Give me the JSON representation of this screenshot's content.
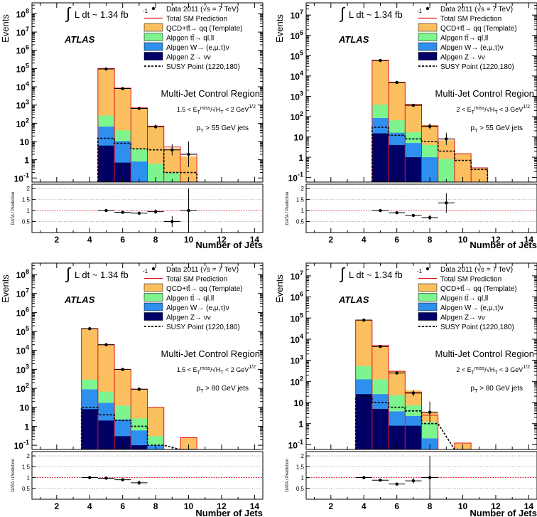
{
  "common": {
    "ylabel_top": "Events",
    "ylabel_ratio": "DATA / Prediction",
    "xlabel": "Number of Jets",
    "lumi_label": "L dt ~ 1.34 fb",
    "lumi_exp": "-1",
    "atlas_label": "ATLAS",
    "region_label": "Multi-Jet Control Region",
    "legend": [
      {
        "key": "data",
        "label": "Data 2011 (√s = 7 TeV)",
        "style": "point",
        "color": "#000000"
      },
      {
        "key": "sm",
        "label": "Total SM Prediction",
        "style": "line",
        "color": "#e0141e"
      },
      {
        "key": "qcd",
        "label": "QCD+tt̄→ qq (Template)",
        "style": "box",
        "color": "#fbbf5f"
      },
      {
        "key": "ttbar",
        "label": "Alpgen tt̄→ ql,ll",
        "style": "box",
        "color": "#7df48d"
      },
      {
        "key": "wjets",
        "label": "Alpgen W→ (e,μ,τ)ν",
        "style": "box",
        "color": "#2e8fef"
      },
      {
        "key": "zjets",
        "label": "Alpgen Z→ νν",
        "style": "box",
        "color": "#000066"
      },
      {
        "key": "susy",
        "label": "SUSY Point (1220,180)",
        "style": "dash",
        "color": "#000000"
      }
    ],
    "x_ticks": [
      "2",
      "4",
      "6",
      "8",
      "10",
      "12",
      "14"
    ],
    "ratio_ticks": [
      "0.5",
      "1",
      "1.5",
      "2"
    ]
  },
  "chart_data": [
    {
      "type": "bar",
      "stacked": true,
      "ylog": true,
      "xlim": [
        0.5,
        14.5
      ],
      "ylim": [
        0.06,
        400000000
      ],
      "ytop_exp": 8,
      "cut_label": "1.5 < E",
      "cut_label_tail": "/√H",
      "cut_label_end": " < 2 GeV",
      "pt_label": "p",
      "pt_label_tail": " > 55 GeV jets",
      "bins": [
        5,
        6,
        7,
        8,
        9,
        10
      ],
      "series": [
        {
          "name": "Alpgen Z→ νν",
          "key": "zjets",
          "values": [
            6,
            0.7,
            0,
            0,
            0,
            0
          ]
        },
        {
          "name": "Alpgen W→ (e,μ,τ)ν",
          "key": "wjets",
          "values": [
            60,
            10,
            0.8,
            0,
            0,
            0
          ]
        },
        {
          "name": "Alpgen tt̄→ ql,ll",
          "key": "ttbar",
          "values": [
            200,
            30,
            3,
            0.6,
            0.2,
            0
          ]
        },
        {
          "name": "QCD+tt̄→ qq (Template)",
          "key": "qcd",
          "values": [
            100000,
            8500,
            700,
            70,
            4,
            1.5
          ]
        }
      ],
      "susy": [
        15,
        8,
        4,
        3.5,
        0.2,
        0.2
      ],
      "total": [
        100000,
        8500,
        700,
        70,
        5,
        2
      ],
      "data": {
        "x": [
          5,
          6,
          7,
          8,
          9,
          10
        ],
        "y": [
          95000,
          8000,
          650,
          65,
          3.5,
          2
        ],
        "err_lo": [
          0.01,
          0.01,
          0.04,
          0.12,
          0.3,
          0.7
        ],
        "err_hi": [
          0.01,
          0.01,
          0.04,
          0.12,
          0.3,
          0.7
        ]
      },
      "ratio": {
        "x": [
          5,
          6,
          7,
          8,
          9,
          10
        ],
        "y": [
          1.0,
          0.92,
          0.88,
          0.95,
          0.5,
          1.0
        ],
        "err": [
          0.02,
          0.03,
          0.05,
          0.1,
          0.25,
          1.0
        ],
        "ylim": [
          0,
          2.2
        ]
      }
    },
    {
      "type": "bar",
      "stacked": true,
      "ylog": true,
      "xlim": [
        0.5,
        14.5
      ],
      "ylim": [
        0.06,
        40000000
      ],
      "ytop_exp": 7,
      "cut_label": "2 < E",
      "cut_label_tail": "/√H",
      "cut_label_end": " < 3 GeV",
      "pt_label": "p",
      "pt_label_tail": " > 55 GeV jets",
      "bins": [
        5,
        6,
        7,
        8,
        9,
        10,
        11
      ],
      "series": [
        {
          "name": "Alpgen Z→ νν",
          "key": "zjets",
          "values": [
            15,
            4,
            1,
            0,
            0,
            0,
            0
          ]
        },
        {
          "name": "Alpgen W→ (e,μ,τ)ν",
          "key": "wjets",
          "values": [
            70,
            12,
            4,
            1,
            0,
            0,
            0
          ]
        },
        {
          "name": "Alpgen tt̄→ ql,ll",
          "key": "ttbar",
          "values": [
            300,
            50,
            12,
            3,
            0.8,
            0,
            0
          ]
        },
        {
          "name": "QCD+tt̄→ qq (Template)",
          "key": "qcd",
          "values": [
            60000,
            5000,
            400,
            35,
            6,
            1.5,
            0.3
          ]
        }
      ],
      "susy": [
        30,
        12,
        8,
        6,
        2,
        0.7,
        0.25
      ],
      "total": [
        60000,
        5000,
        400,
        35,
        8,
        1.5,
        0.3
      ],
      "data": {
        "x": [
          5,
          6,
          7,
          8,
          9
        ],
        "y": [
          58000,
          4800,
          360,
          33,
          8
        ],
        "err_lo": [
          0.01,
          0.01,
          0.05,
          0.15,
          0.3
        ],
        "err_hi": [
          0.01,
          0.01,
          0.05,
          0.15,
          0.3
        ]
      },
      "ratio": {
        "x": [
          5,
          6,
          7,
          8,
          9
        ],
        "y": [
          1.0,
          0.9,
          0.78,
          0.68,
          1.35
        ],
        "err": [
          0.02,
          0.03,
          0.06,
          0.12,
          0.45
        ],
        "ylim": [
          0,
          2.2
        ]
      }
    },
    {
      "type": "bar",
      "stacked": true,
      "ylog": true,
      "xlim": [
        0.5,
        14.5
      ],
      "ylim": [
        0.06,
        400000000
      ],
      "ytop_exp": 8,
      "cut_label": "1.5 < E",
      "cut_label_tail": "/√H",
      "cut_label_end": " < 2 GeV",
      "pt_label": "p",
      "pt_label_tail": " > 80 GeV jets",
      "bins": [
        4,
        5,
        6,
        7,
        8,
        10
      ],
      "series": [
        {
          "name": "Alpgen Z→ νν",
          "key": "zjets",
          "values": [
            8,
            2,
            0.3,
            0.1,
            0,
            0
          ]
        },
        {
          "name": "Alpgen W→ (e,μ,τ)ν",
          "key": "wjets",
          "values": [
            80,
            15,
            2,
            0.5,
            0.1,
            0
          ]
        },
        {
          "name": "Alpgen tt̄→ ql,ll",
          "key": "ttbar",
          "values": [
            200,
            50,
            10,
            2,
            0.2,
            0
          ]
        },
        {
          "name": "QCD+tt̄→ qq (Template)",
          "key": "qcd",
          "values": [
            140000,
            20000,
            1000,
            90,
            10,
            0.25
          ]
        }
      ],
      "susy": [
        10,
        4,
        2,
        1,
        0.1,
        0
      ],
      "total": [
        140000,
        20000,
        1000,
        90,
        10,
        0.25
      ],
      "data": {
        "x": [
          4,
          5,
          6,
          7
        ],
        "y": [
          140000,
          20000,
          1000,
          90
        ],
        "err_lo": [
          0.01,
          0.01,
          0.03,
          0.1
        ],
        "err_hi": [
          0.01,
          0.01,
          0.03,
          0.1
        ]
      },
      "ratio": {
        "x": [
          4,
          5,
          6,
          7
        ],
        "y": [
          1.0,
          0.97,
          0.9,
          0.76
        ],
        "err": [
          0.02,
          0.03,
          0.05,
          0.1
        ],
        "ylim": [
          0,
          2.2
        ]
      }
    },
    {
      "type": "bar",
      "stacked": true,
      "ylog": true,
      "xlim": [
        0.5,
        14.5
      ],
      "ylim": [
        0.06,
        40000000
      ],
      "ytop_exp": 7,
      "cut_label": "2 < E",
      "cut_label_tail": "/√H",
      "cut_label_end": " < 3 GeV",
      "pt_label": "p",
      "pt_label_tail": " > 80 GeV jets",
      "bins": [
        4,
        5,
        6,
        7,
        8,
        10
      ],
      "series": [
        {
          "name": "Alpgen Z→ νν",
          "key": "zjets",
          "values": [
            25,
            5,
            0.8,
            0.8,
            0,
            0
          ]
        },
        {
          "name": "Alpgen W→ (e,μ,τ)ν",
          "key": "wjets",
          "values": [
            100,
            20,
            3,
            1.5,
            0.2,
            0
          ]
        },
        {
          "name": "Alpgen tt̄→ ql,ll",
          "key": "ttbar",
          "values": [
            400,
            100,
            18,
            5,
            1,
            0
          ]
        },
        {
          "name": "QCD+tt̄→ qq (Template)",
          "key": "qcd",
          "values": [
            80000,
            5000,
            300,
            30,
            2.5,
            0.12
          ]
        }
      ],
      "susy": [
        20,
        10,
        6,
        4,
        1,
        0
      ],
      "total": [
        80000,
        5000,
        300,
        30,
        2.5,
        0.12
      ],
      "data": {
        "x": [
          4,
          5,
          6,
          7,
          8
        ],
        "y": [
          80000,
          4500,
          250,
          28,
          3.5
        ],
        "err_lo": [
          0.01,
          0.01,
          0.05,
          0.15,
          0.5
        ],
        "err_hi": [
          0.01,
          0.01,
          0.05,
          0.15,
          0.5
        ]
      },
      "ratio": {
        "x": [
          4,
          5,
          6,
          7,
          8
        ],
        "y": [
          1.0,
          0.88,
          0.7,
          0.85,
          1.0
        ],
        "err": [
          0.02,
          0.03,
          0.06,
          0.12,
          1.0
        ],
        "ylim": [
          0,
          2.2
        ]
      }
    }
  ]
}
